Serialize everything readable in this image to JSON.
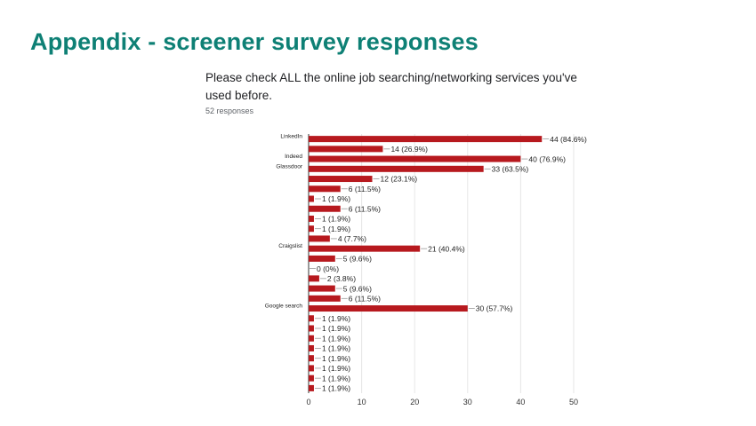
{
  "slide": {
    "title": "Appendix - screener survey responses",
    "question": "Please check ALL the online job searching/networking services you've used before.",
    "responses": "52 responses"
  },
  "colors": {
    "title": "#0e8075",
    "bar": "#b7191e",
    "grid": "#e6e6e6"
  },
  "chart_data": {
    "type": "bar",
    "orientation": "horizontal",
    "categories": [
      "LinkedIn",
      "",
      "Indeed",
      "Glassdoor",
      "",
      "",
      "",
      "",
      "",
      "",
      "",
      "Craigslist",
      "",
      "",
      "",
      "",
      "",
      "Google search",
      "",
      "",
      "",
      "",
      "",
      "",
      "",
      ""
    ],
    "values": [
      44,
      14,
      40,
      33,
      12,
      6,
      1,
      6,
      1,
      1,
      4,
      21,
      5,
      0,
      2,
      5,
      6,
      30,
      1,
      1,
      1,
      1,
      1,
      1,
      1,
      1
    ],
    "data_labels": [
      "44 (84.6%)",
      "14 (26.9%)",
      "40 (76.9%)",
      "33 (63.5%)",
      "12 (23.1%)",
      "6 (11.5%)",
      "1 (1.9%)",
      "6 (11.5%)",
      "1 (1.9%)",
      "1 (1.9%)",
      "4 (7.7%)",
      "21 (40.4%)",
      "5 (9.6%)",
      "0 (0%)",
      "2 (3.8%)",
      "5 (9.6%)",
      "6 (11.5%)",
      "30 (57.7%)",
      "1 (1.9%)",
      "1 (1.9%)",
      "1 (1.9%)",
      "1 (1.9%)",
      "1 (1.9%)",
      "1 (1.9%)",
      "1 (1.9%)",
      "1 (1.9%)"
    ],
    "xlim": [
      0,
      50
    ],
    "xticks": [
      "0",
      "10",
      "20",
      "30",
      "40",
      "50"
    ],
    "grid": true,
    "legend": "none"
  }
}
